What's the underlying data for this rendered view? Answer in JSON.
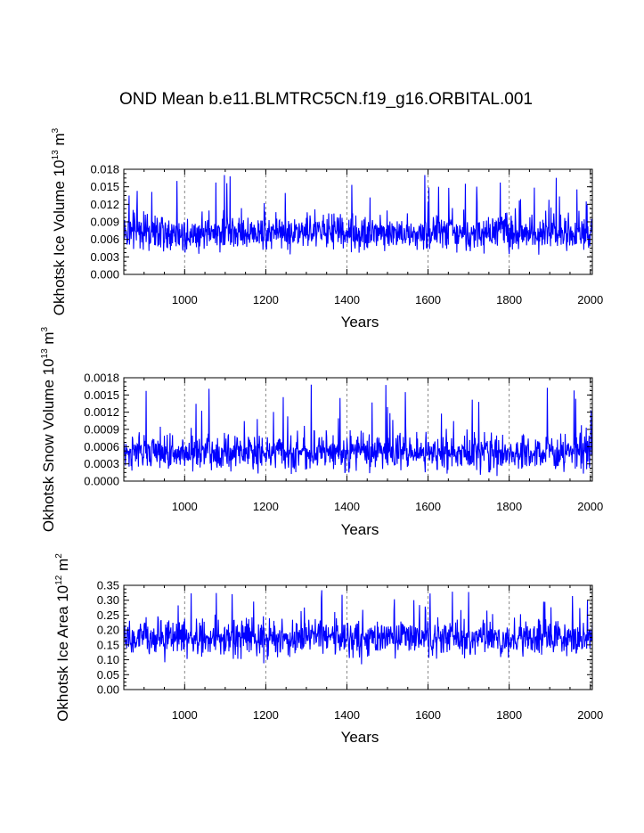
{
  "page": {
    "title": "OND Mean b.e11.BLMTRC5CN.f19_g16.ORBITAL.001"
  },
  "colors": {
    "series": "#0000ff",
    "axis": "#000000",
    "refline": "#888888"
  },
  "chart_data": [
    {
      "type": "line",
      "name": "ice-volume",
      "ylabel": {
        "main": "Okhotsk Ice Volume 10",
        "exp": "13",
        "unit": " m",
        "unit_exp": "3"
      },
      "xlabel": "Years",
      "xlim": [
        850,
        2005
      ],
      "ylim": [
        0.0,
        0.018
      ],
      "xticks": [
        1000,
        1200,
        1400,
        1600,
        1800,
        2000
      ],
      "xtick_labels": [
        "1000",
        "1200",
        "1400",
        "1600",
        "1800",
        "2000"
      ],
      "yticks": [
        0.0,
        0.003,
        0.006,
        0.009,
        0.012,
        0.015,
        0.018
      ],
      "ytick_labels": [
        "0.000",
        "0.003",
        "0.006",
        "0.009",
        "0.012",
        "0.015",
        "0.018"
      ],
      "vlines": [
        1000,
        1200,
        1400,
        1600,
        1800,
        2000
      ],
      "series_stats": {
        "x_start": 850,
        "x_end": 2005,
        "mean": 0.0072,
        "typical_min": 0.0025,
        "peak_max": 0.017
      }
    },
    {
      "type": "line",
      "name": "snow-volume",
      "ylabel": {
        "main": "Okhotsk Snow Volume 10",
        "exp": "13",
        "unit": " m",
        "unit_exp": "3"
      },
      "xlabel": "Years",
      "xlim": [
        850,
        2005
      ],
      "ylim": [
        0.0,
        0.0018
      ],
      "xticks": [
        1000,
        1200,
        1400,
        1600,
        1800,
        2000
      ],
      "xtick_labels": [
        "1000",
        "1200",
        "1400",
        "1600",
        "1800",
        "2000"
      ],
      "yticks": [
        0.0,
        0.0003,
        0.0006,
        0.0009,
        0.0012,
        0.0015,
        0.0018
      ],
      "ytick_labels": [
        "0.0000",
        "0.0003",
        "0.0006",
        "0.0009",
        "0.0012",
        "0.0015",
        "0.0018"
      ],
      "vlines": [
        1000,
        1200,
        1400,
        1600,
        1800,
        2000
      ],
      "series_stats": {
        "x_start": 850,
        "x_end": 2005,
        "mean": 0.0005,
        "typical_min": 0.00015,
        "peak_max": 0.00168
      }
    },
    {
      "type": "line",
      "name": "ice-area",
      "ylabel": {
        "main": "Okhotsk Ice Area 10",
        "exp": "12",
        "unit": " m",
        "unit_exp": "2"
      },
      "xlabel": "Years",
      "xlim": [
        850,
        2005
      ],
      "ylim": [
        0.0,
        0.35
      ],
      "xticks": [
        1000,
        1200,
        1400,
        1600,
        1800,
        2000
      ],
      "xtick_labels": [
        "1000",
        "1200",
        "1400",
        "1600",
        "1800",
        "2000"
      ],
      "yticks": [
        0.0,
        0.05,
        0.1,
        0.15,
        0.2,
        0.25,
        0.3,
        0.35
      ],
      "ytick_labels": [
        "0.00",
        "0.05",
        "0.10",
        "0.15",
        "0.20",
        "0.25",
        "0.30",
        "0.35"
      ],
      "vlines": [
        1000,
        1200,
        1400,
        1600,
        1800,
        2000
      ],
      "series_stats": {
        "x_start": 850,
        "x_end": 2005,
        "mean": 0.172,
        "typical_min": 0.06,
        "peak_max": 0.335
      }
    }
  ]
}
